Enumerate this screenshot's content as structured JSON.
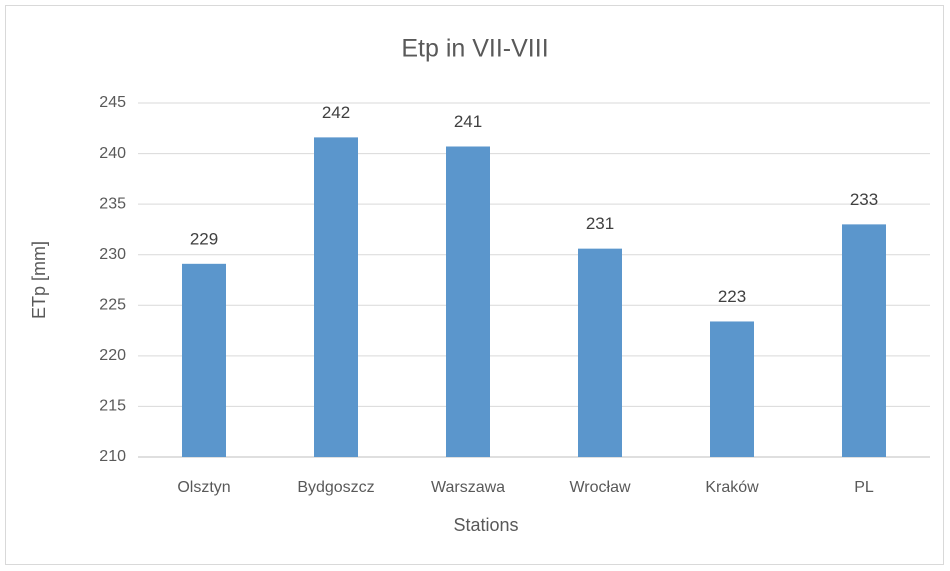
{
  "chart_data": {
    "type": "bar",
    "title": "Etp in VII-VIII",
    "x_label": "Stations",
    "y_label": "ETp [mm]",
    "categories": [
      "Olsztyn",
      "Bydgoszcz",
      "Warszawa",
      "Wrocław",
      "Kraków",
      "PL"
    ],
    "values": [
      229.1,
      241.6,
      240.7,
      230.6,
      223.4,
      233.0
    ],
    "value_labels": [
      "229",
      "242",
      "241",
      "231",
      "223",
      "233"
    ],
    "color": "#5b96cc",
    "ylim": [
      210,
      245
    ],
    "yticks": [
      210,
      215,
      220,
      225,
      230,
      235,
      240,
      245
    ],
    "grid": true
  }
}
